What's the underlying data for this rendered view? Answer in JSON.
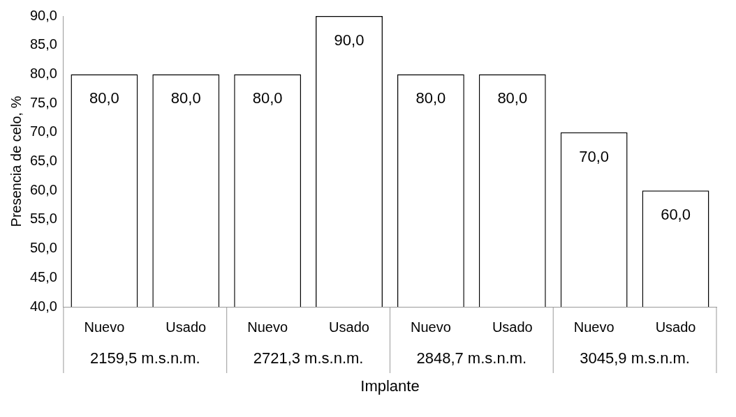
{
  "chart_data": {
    "type": "bar",
    "xlabel": "Implante",
    "ylabel": "Presencia de celo, %",
    "categories": [
      "Nuevo",
      "Usado",
      "Nuevo",
      "Usado",
      "Nuevo",
      "Usado",
      "Nuevo",
      "Usado"
    ],
    "values": [
      80,
      80,
      80,
      90,
      80,
      80,
      70,
      60
    ],
    "value_labels": [
      "80,0",
      "80,0",
      "80,0",
      "90,0",
      "80,0",
      "80,0",
      "70,0",
      "60,0"
    ],
    "color": "#ffffff",
    "ylim": [
      40,
      90
    ],
    "yticks": [
      {
        "value": 40,
        "label": "40,0"
      },
      {
        "value": 45,
        "label": "45,0"
      },
      {
        "value": 50,
        "label": "50,0"
      },
      {
        "value": 55,
        "label": "55,0"
      },
      {
        "value": 60,
        "label": "60,0"
      },
      {
        "value": 65,
        "label": "65,0"
      },
      {
        "value": 70,
        "label": "70,0"
      },
      {
        "value": 75,
        "label": "75,0"
      },
      {
        "value": 80,
        "label": "80,0"
      },
      {
        "value": 85,
        "label": "85,0"
      },
      {
        "value": 90,
        "label": "90,0"
      }
    ],
    "annotations": [
      "2159,5 m.s.n.m.",
      "2721,3 m.s.n.m.",
      "2848,7 m.s.n.m.",
      "3045,9 m.s.n.m."
    ],
    "grid": false,
    "legend": false
  }
}
